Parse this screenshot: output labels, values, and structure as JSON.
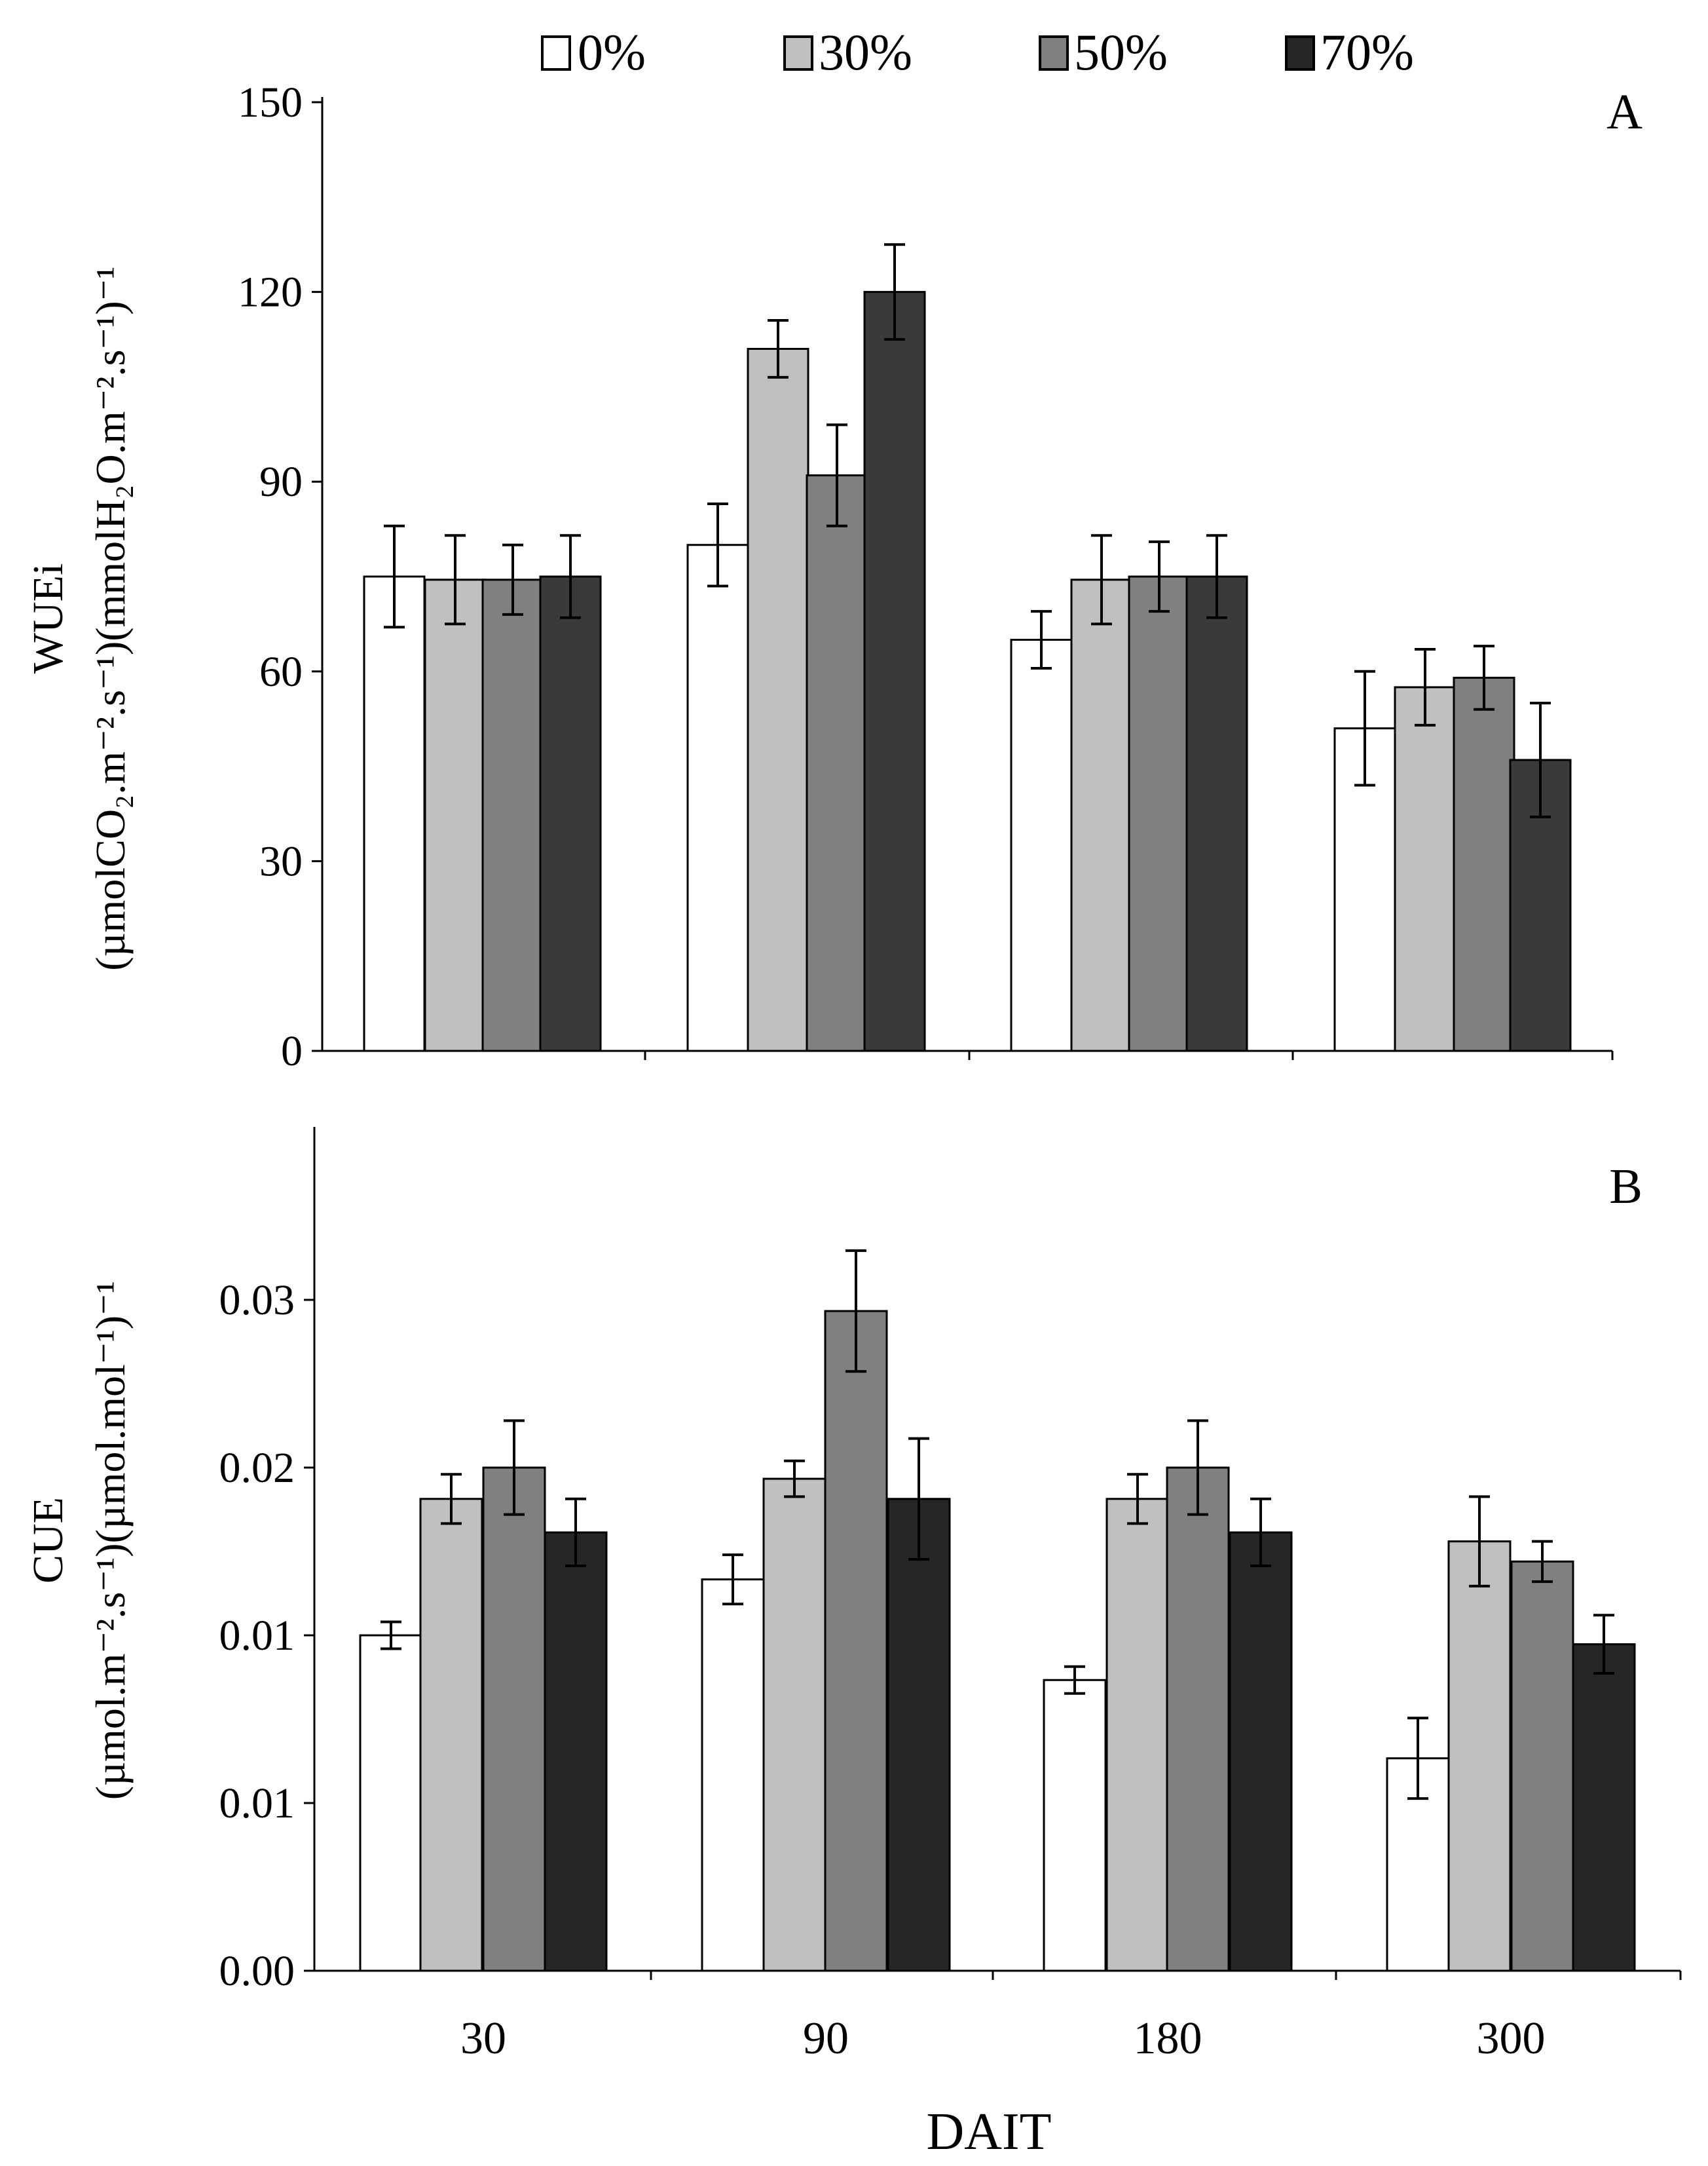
{
  "legend": {
    "items": [
      {
        "label": "0%",
        "color": "#ffffff"
      },
      {
        "label": "30%",
        "color": "#c0c0c0"
      },
      {
        "label": "50%",
        "color": "#808080"
      },
      {
        "label": "70%",
        "color": "#262626"
      }
    ]
  },
  "x_axis_title": "DAIT",
  "chart_data": [
    {
      "type": "bar",
      "panel": "A",
      "title": "",
      "categories": [
        "30",
        "90",
        "180",
        "300"
      ],
      "ylabel_line1": "WUEi",
      "ylabel_line2": "(µmolCO₂.m⁻².s⁻¹)(mmolH₂O.m⁻².s⁻¹)⁻¹",
      "ylim": [
        0,
        150
      ],
      "yticks": [
        0,
        30,
        60,
        90,
        120,
        150
      ],
      "ytick_labels": [
        "0",
        "30",
        "60",
        "90",
        "120",
        "150"
      ],
      "series": [
        {
          "name": "0%",
          "color": "#ffffff",
          "values": [
            75,
            80,
            65,
            51
          ],
          "errors": [
            8,
            6.5,
            4.5,
            9
          ]
        },
        {
          "name": "30%",
          "color": "#c0c0c0",
          "values": [
            74.5,
            111,
            74.5,
            57.5
          ],
          "errors": [
            7,
            4.5,
            7,
            6
          ]
        },
        {
          "name": "50%",
          "color": "#808080",
          "values": [
            74.5,
            91,
            75,
            59
          ],
          "errors": [
            5.5,
            8,
            5.5,
            5
          ]
        },
        {
          "name": "70%",
          "color": "#3a3a3a",
          "values": [
            75,
            120,
            75,
            46
          ],
          "errors": [
            6.5,
            7.5,
            6.5,
            9
          ]
        }
      ]
    },
    {
      "type": "bar",
      "panel": "B",
      "title": "",
      "categories": [
        "30",
        "90",
        "180",
        "300"
      ],
      "ylabel_line1": "CUE",
      "ylabel_line2": "(µmol.m⁻².s⁻¹)(µmol.mol⁻¹)⁻¹",
      "ylim": [
        0,
        0.0375
      ],
      "yticks": [
        0,
        0.0075,
        0.015,
        0.0225,
        0.03
      ],
      "ytick_labels": [
        "0.00",
        "0.01",
        "0.01",
        "0.02",
        "0.03"
      ],
      "series": [
        {
          "name": "0%",
          "color": "#ffffff",
          "values": [
            0.015,
            0.0175,
            0.013,
            0.0095
          ],
          "errors": [
            0.0006,
            0.0011,
            0.0006,
            0.0018
          ]
        },
        {
          "name": "30%",
          "color": "#c0c0c0",
          "values": [
            0.0211,
            0.022,
            0.0211,
            0.0192
          ],
          "errors": [
            0.0011,
            0.0008,
            0.0011,
            0.002
          ]
        },
        {
          "name": "50%",
          "color": "#808080",
          "values": [
            0.0225,
            0.0295,
            0.0225,
            0.0183
          ],
          "errors": [
            0.0021,
            0.0027,
            0.0021,
            0.0009
          ]
        },
        {
          "name": "70%",
          "color": "#262626",
          "values": [
            0.0196,
            0.0211,
            0.0196,
            0.0146
          ],
          "errors": [
            0.0015,
            0.0027,
            0.0015,
            0.0013
          ]
        }
      ]
    }
  ]
}
